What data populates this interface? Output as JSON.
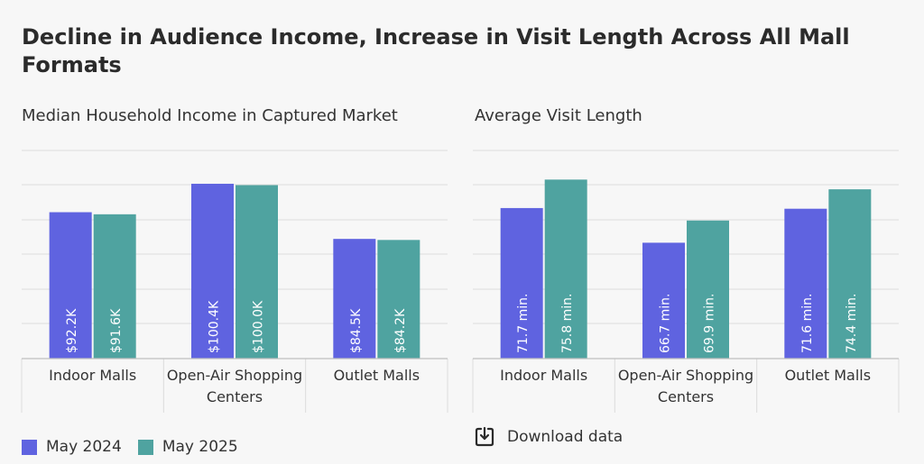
{
  "title": "Decline in Audience Income, Increase in Visit Length Across All Mall Formats",
  "colors": {
    "may2024": "#5f63e0",
    "may2025": "#4fa3a0"
  },
  "legend": [
    {
      "label": "May 2024",
      "color": "#5f63e0"
    },
    {
      "label": "May 2025",
      "color": "#4fa3a0"
    }
  ],
  "download_label": "Download data",
  "chart_data": [
    {
      "type": "bar",
      "title": "Median Household Income in Captured Market",
      "categories": [
        "Indoor Malls",
        "Open-Air Shopping Centers",
        "Outlet Malls"
      ],
      "series": [
        {
          "name": "May 2024",
          "values": [
            92.2,
            100.4,
            84.5
          ],
          "labels": [
            "$92.2K",
            "$100.4K",
            "$84.5K"
          ]
        },
        {
          "name": "May 2025",
          "values": [
            91.6,
            100.0,
            84.2
          ],
          "labels": [
            "$91.6K",
            "$100.0K",
            "$84.2K"
          ]
        }
      ],
      "ylim": [
        50,
        110
      ],
      "grid": true,
      "legend": "bottom-left"
    },
    {
      "type": "bar",
      "title": "Average Visit Length",
      "categories": [
        "Indoor Malls",
        "Open-Air Shopping Centers",
        "Outlet Malls"
      ],
      "series": [
        {
          "name": "May 2024",
          "values": [
            71.7,
            66.7,
            71.6
          ],
          "labels": [
            "71.7 min.",
            "66.7 min.",
            "71.6 min."
          ]
        },
        {
          "name": "May 2025",
          "values": [
            75.8,
            69.9,
            74.4
          ],
          "labels": [
            "75.8 min.",
            "69.9 min.",
            "74.4 min."
          ]
        }
      ],
      "ylim": [
        50,
        80
      ],
      "grid": true,
      "legend": "bottom-left"
    }
  ]
}
